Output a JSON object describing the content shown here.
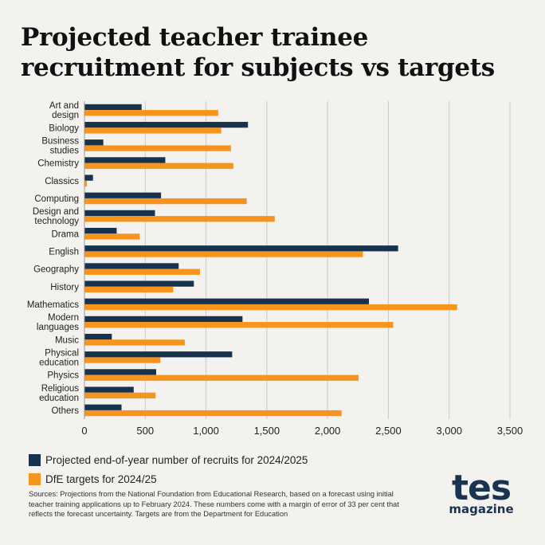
{
  "title": "Projected teacher trainee recruitment for subjects vs targets",
  "chart_data": {
    "type": "bar",
    "orientation": "horizontal",
    "title": "Projected teacher trainee recruitment for subjects vs targets",
    "categories": [
      [
        "Art and",
        "design"
      ],
      [
        "Biology"
      ],
      [
        "Business",
        "studies"
      ],
      [
        "Chemistry"
      ],
      [
        "Classics"
      ],
      [
        "Computing"
      ],
      [
        "Design and",
        "technology"
      ],
      [
        "Drama"
      ],
      [
        "English"
      ],
      [
        "Geography"
      ],
      [
        "History"
      ],
      [
        "Mathematics"
      ],
      [
        "Modern",
        "languages"
      ],
      [
        "Music"
      ],
      [
        "Physical",
        "education"
      ],
      [
        "Physics"
      ],
      [
        "Religious",
        "education"
      ],
      [
        "Others"
      ]
    ],
    "series": [
      {
        "name": "Projected end-of-year number of recruits for 2024/2025",
        "color": "#17324d",
        "values": [
          470,
          1345,
          155,
          665,
          70,
          630,
          580,
          265,
          2580,
          775,
          900,
          2340,
          1300,
          225,
          1215,
          590,
          405,
          305
        ]
      },
      {
        "name": "DfE targets for 2024/25",
        "color": "#f7941d",
        "values": [
          1100,
          1125,
          1205,
          1225,
          20,
          1335,
          1565,
          455,
          2290,
          950,
          730,
          3065,
          2540,
          825,
          625,
          2255,
          585,
          2115
        ]
      }
    ],
    "xlim": [
      0,
      3500
    ],
    "xticks": [
      0,
      500,
      1000,
      1500,
      2000,
      2500,
      3000,
      3500
    ],
    "xtick_labels": [
      "0",
      "500",
      "1,000",
      "1,500",
      "2,000",
      "2,500",
      "3,000",
      "3,500"
    ],
    "grid": "vertical",
    "legend_position": "bottom-left"
  },
  "sources": "Sources: Projections from the National Foundation from Educational Research, based on a forecast using initial teacher training applications up to February 2024. These numbers come with a margin of error of 33 per cent that reflects the forecast uncertainty. Targets are from the Department for Education",
  "logo": {
    "main": "tes",
    "sub": "magazine"
  }
}
